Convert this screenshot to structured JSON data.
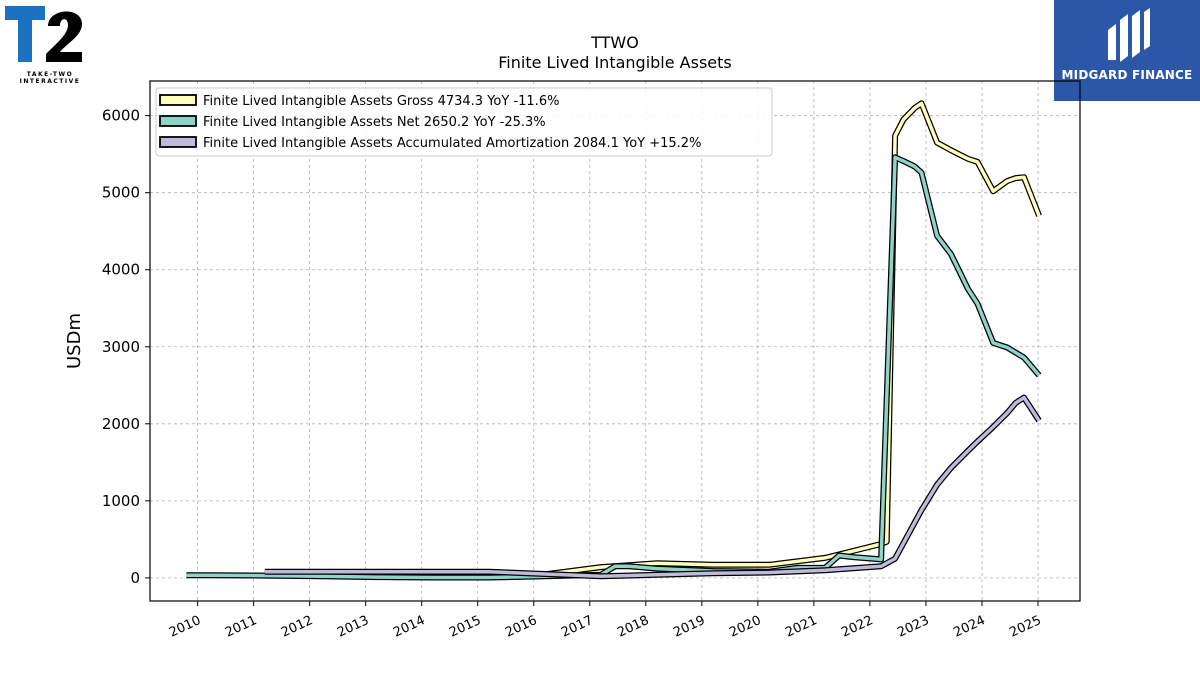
{
  "branding": {
    "company_logo": "T2",
    "company_logo_sub1": "TAKE-TWO",
    "company_logo_sub2": "INTERACTIVE",
    "publisher": "MIDGARD FINANCE"
  },
  "chart_data": {
    "type": "line",
    "title": "TTWO",
    "subtitle": "Finite Lived Intangible Assets",
    "ylabel": "USDm",
    "xlabel": "",
    "ylim": [
      -300,
      6450
    ],
    "xlim": [
      2009.15,
      2025.75
    ],
    "x_ticks": [
      2010,
      2011,
      2012,
      2013,
      2014,
      2015,
      2016,
      2017,
      2018,
      2019,
      2020,
      2021,
      2022,
      2023,
      2024,
      2025
    ],
    "y_ticks": [
      0,
      1000,
      2000,
      3000,
      4000,
      5000,
      6000
    ],
    "grid": true,
    "legend_position": "top-left",
    "series": [
      {
        "name": "Finite Lived Intangible Assets Gross",
        "legend": "Finite Lived Intangible Assets Gross  4734.3 YoY -11.6%",
        "color": "#ffffbb",
        "points": [
          [
            2011.2,
            60
          ],
          [
            2012.2,
            35
          ],
          [
            2013.2,
            30
          ],
          [
            2014.2,
            30
          ],
          [
            2015.2,
            30
          ],
          [
            2016.2,
            45
          ],
          [
            2017.2,
            140
          ],
          [
            2018.2,
            190
          ],
          [
            2019.2,
            170
          ],
          [
            2020.2,
            170
          ],
          [
            2021.2,
            260
          ],
          [
            2022.2,
            440
          ],
          [
            2022.3,
            470
          ],
          [
            2022.45,
            5740
          ],
          [
            2022.6,
            5950
          ],
          [
            2022.8,
            6100
          ],
          [
            2022.92,
            6160
          ],
          [
            2023.2,
            5650
          ],
          [
            2023.45,
            5550
          ],
          [
            2023.75,
            5440
          ],
          [
            2023.92,
            5400
          ],
          [
            2024.2,
            5020
          ],
          [
            2024.45,
            5150
          ],
          [
            2024.6,
            5190
          ],
          [
            2024.75,
            5200
          ],
          [
            2025.02,
            4700
          ]
        ]
      },
      {
        "name": "Finite Lived Intangible Assets Net",
        "legend": "Finite Lived Intangible Assets Net  2650.2 YoY -25.3%",
        "color": "#8dd3c7",
        "points": [
          [
            2009.8,
            35
          ],
          [
            2010.2,
            35
          ],
          [
            2011.2,
            30
          ],
          [
            2012.2,
            20
          ],
          [
            2013.2,
            10
          ],
          [
            2014.2,
            5
          ],
          [
            2015.2,
            5
          ],
          [
            2016.2,
            20
          ],
          [
            2017.2,
            40
          ],
          [
            2017.45,
            150
          ],
          [
            2017.7,
            150
          ],
          [
            2018.2,
            120
          ],
          [
            2019.2,
            90
          ],
          [
            2020.2,
            80
          ],
          [
            2020.7,
            130
          ],
          [
            2021.2,
            130
          ],
          [
            2021.45,
            290
          ],
          [
            2021.7,
            270
          ],
          [
            2022.2,
            240
          ],
          [
            2022.45,
            5460
          ],
          [
            2022.6,
            5410
          ],
          [
            2022.8,
            5340
          ],
          [
            2022.92,
            5260
          ],
          [
            2023.2,
            4440
          ],
          [
            2023.45,
            4200
          ],
          [
            2023.75,
            3750
          ],
          [
            2023.92,
            3560
          ],
          [
            2024.2,
            3050
          ],
          [
            2024.45,
            2990
          ],
          [
            2024.75,
            2860
          ],
          [
            2025.02,
            2630
          ]
        ]
      },
      {
        "name": "Finite Lived Intangible Assets Accumulated Amortization",
        "legend": "Finite Lived Intangible Assets Accumulated Amortization  2084.1 YoY +15.2%",
        "color": "#bebada",
        "points": [
          [
            2011.2,
            80
          ],
          [
            2012.2,
            80
          ],
          [
            2013.2,
            80
          ],
          [
            2014.2,
            80
          ],
          [
            2015.2,
            80
          ],
          [
            2016.2,
            50
          ],
          [
            2017.2,
            20
          ],
          [
            2018.2,
            40
          ],
          [
            2019.2,
            60
          ],
          [
            2020.2,
            70
          ],
          [
            2021.2,
            100
          ],
          [
            2022.2,
            150
          ],
          [
            2022.45,
            250
          ],
          [
            2022.92,
            880
          ],
          [
            2023.2,
            1210
          ],
          [
            2023.45,
            1430
          ],
          [
            2023.75,
            1650
          ],
          [
            2023.92,
            1770
          ],
          [
            2024.2,
            1960
          ],
          [
            2024.45,
            2140
          ],
          [
            2024.6,
            2270
          ],
          [
            2024.75,
            2340
          ],
          [
            2025.02,
            2040
          ]
        ]
      }
    ]
  }
}
